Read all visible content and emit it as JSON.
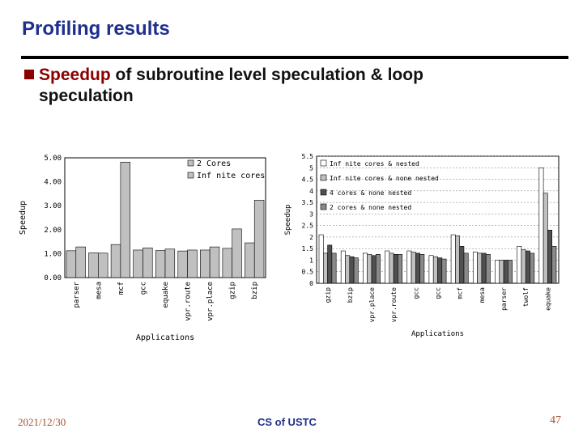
{
  "slide": {
    "title": "Profiling results",
    "bullet_highlight": "Speedup",
    "bullet_rest": " of subroutine level speculation & loop",
    "bullet_line2": "speculation",
    "footer_date": "2021/12/30",
    "footer_center": "CS of USTC",
    "page_number": "47"
  },
  "colors": {
    "title": "#1f2f8c",
    "bullet": "#8b0000",
    "bar_light": "#c0c0c0",
    "bar_mid": "#8a8a8a",
    "bar_dark": "#505050",
    "bar_white": "#ffffff"
  },
  "chart_data": [
    {
      "type": "bar",
      "ylabel": "Speedup",
      "xlabel": "Applications",
      "ylim": [
        0,
        5
      ],
      "yticks": [
        "0.00",
        "1.00",
        "2.00",
        "3.00",
        "4.00",
        "5.00"
      ],
      "legend_position": "top-right",
      "grid": false,
      "categories": [
        "parser",
        "mesa",
        "mcf",
        "gcc",
        "equake",
        "vpr.route",
        "vpr.place",
        "gzip",
        "bzip"
      ],
      "series": [
        {
          "name": "2 Cores",
          "values": [
            1.12,
            1.03,
            1.38,
            1.15,
            1.13,
            1.11,
            1.15,
            1.22,
            1.45
          ]
        },
        {
          "name": "Inf nite cores",
          "values": [
            1.28,
            1.02,
            4.82,
            1.24,
            1.19,
            1.15,
            1.28,
            2.03,
            3.23
          ]
        }
      ]
    },
    {
      "type": "bar",
      "ylabel": "Speedup",
      "xlabel": "Applications",
      "ylim": [
        0,
        5.5
      ],
      "yticks": [
        "0",
        "0.5",
        "1",
        "1.5",
        "2",
        "2.5",
        "3",
        "3.5",
        "4",
        "4.5",
        "5",
        "5.5"
      ],
      "legend_position": "top",
      "grid": true,
      "categories": [
        "gzip",
        "bzip",
        "vpr.place",
        "vpr.route",
        "gcc",
        "gcc",
        "mcf",
        "mesa",
        "parser",
        "twolf",
        "equake"
      ],
      "series": [
        {
          "name": "Inf nite cores & nested",
          "values": [
            2.1,
            1.4,
            1.3,
            1.4,
            1.4,
            1.2,
            2.1,
            1.35,
            1.0,
            1.6,
            5.0
          ]
        },
        {
          "name": "Inf nite cores & none nested",
          "values": [
            1.3,
            1.2,
            1.25,
            1.3,
            1.35,
            1.15,
            2.05,
            1.3,
            1.0,
            1.45,
            3.9
          ]
        },
        {
          "name": "4 cores & none nested",
          "values": [
            1.65,
            1.15,
            1.2,
            1.25,
            1.3,
            1.1,
            1.6,
            1.3,
            1.0,
            1.4,
            2.3
          ]
        },
        {
          "name": "2 cores & none nested",
          "values": [
            1.3,
            1.1,
            1.25,
            1.25,
            1.25,
            1.05,
            1.3,
            1.25,
            1.0,
            1.3,
            1.6
          ]
        }
      ]
    }
  ]
}
